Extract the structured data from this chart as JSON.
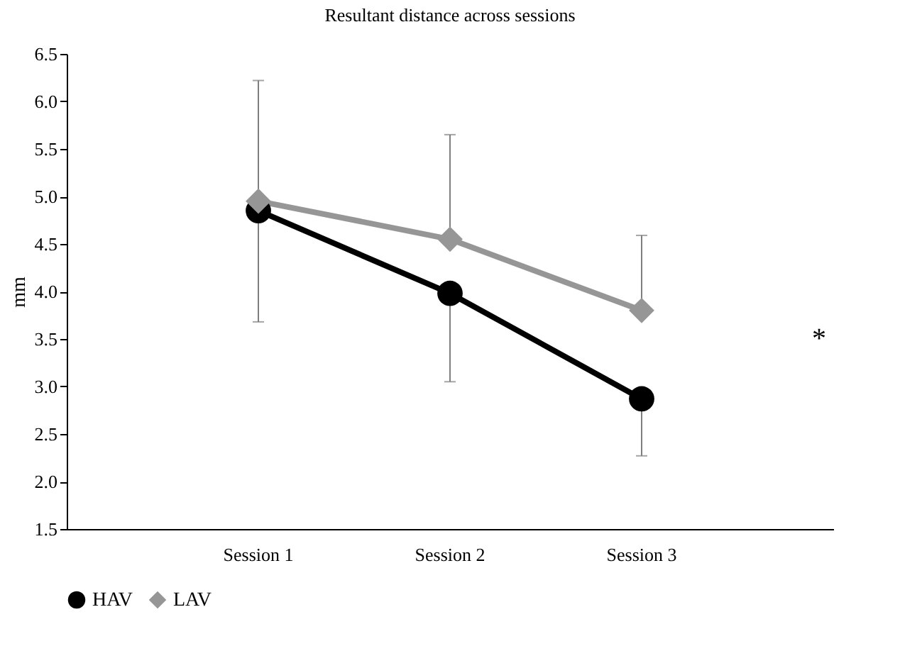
{
  "chart_data": {
    "type": "line",
    "title": "Resultant distance across sessions",
    "ylabel": "mm",
    "categories": [
      "Session 1",
      "Session 2",
      "Session 3"
    ],
    "series": [
      {
        "name": "HAV",
        "color": "#000000",
        "marker": "circle",
        "values": [
          4.85,
          3.98,
          2.87
        ],
        "errors": [
          [
            3.68,
            4.85
          ],
          [
            3.05,
            3.98
          ],
          [
            2.27,
            2.87
          ]
        ]
      },
      {
        "name": "LAV",
        "color": "#969696",
        "marker": "diamond",
        "values": [
          4.95,
          4.55,
          3.8
        ],
        "errors": [
          [
            4.95,
            6.22
          ],
          [
            4.55,
            5.65
          ],
          [
            3.8,
            4.59
          ]
        ]
      }
    ],
    "ylim": [
      1.5,
      6.5
    ],
    "yticks": [
      1.5,
      {
        "value": 2,
        "label": "2.0"
      },
      2.5,
      {
        "value": 3,
        "label": "3.0"
      },
      3.5,
      {
        "value": 4,
        "label": "4.0"
      },
      4.5,
      {
        "value": 5,
        "label": "5.0"
      },
      5.5,
      {
        "value": 6,
        "label": "6.0"
      },
      6.5
    ],
    "annotations": [
      "*"
    ],
    "grid": false,
    "legend": "bottom",
    "line_style": "solid"
  }
}
